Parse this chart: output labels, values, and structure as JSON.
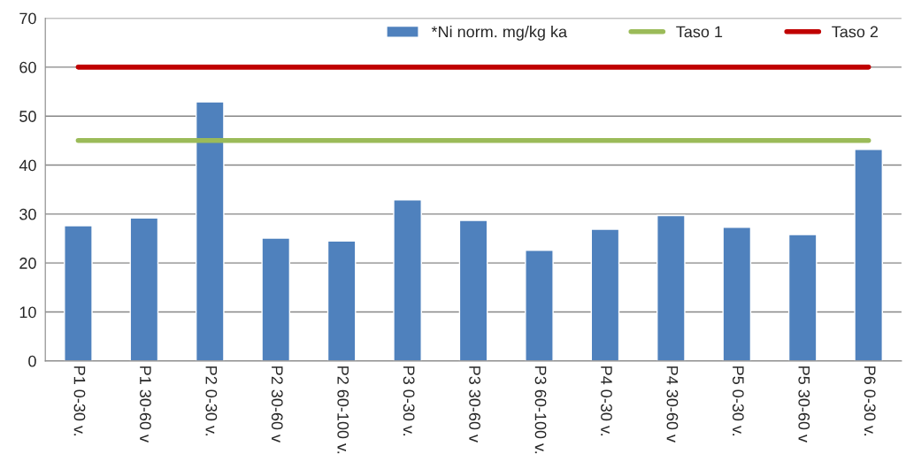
{
  "chart_data": {
    "type": "bar",
    "categories": [
      "P1 0-30 v.",
      "P1 30-60 v",
      "P2 0-30 v.",
      "P2 30-60 v",
      "P2 60-100 v.",
      "P3 0-30 v.",
      "P3 30-60 v",
      "P3 60-100 v.",
      "P4 0-30 v.",
      "P4 30-60 v",
      "P5 0-30 v.",
      "P5 30-60 v",
      "P6 0-30 v."
    ],
    "series": [
      {
        "name": "*Ni norm. mg/kg ka",
        "color": "#4f81bd",
        "values": [
          27.6,
          29.2,
          52.9,
          25.1,
          24.5,
          32.9,
          28.7,
          22.6,
          26.9,
          29.7,
          27.3,
          25.8,
          43.2
        ]
      },
      {
        "name": "Taso 1",
        "type": "line",
        "color": "#9bbb59",
        "values": [
          45,
          45,
          45,
          45,
          45,
          45,
          45,
          45,
          45,
          45,
          45,
          45,
          45
        ]
      },
      {
        "name": "Taso 2",
        "type": "line",
        "color": "#c00000",
        "values": [
          60,
          60,
          60,
          60,
          60,
          60,
          60,
          60,
          60,
          60,
          60,
          60,
          60
        ]
      }
    ],
    "ylim": [
      0,
      70
    ],
    "yticks": [
      0,
      10,
      20,
      30,
      40,
      50,
      60,
      70
    ],
    "grid": "y",
    "legend": "top right"
  }
}
